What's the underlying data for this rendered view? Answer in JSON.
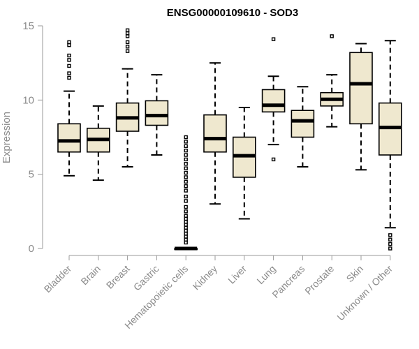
{
  "chart_data": {
    "type": "boxplot",
    "title": "ENSG00000109610 - SOD3",
    "ylabel": "Expression",
    "xlabel": "",
    "ylim": [
      0,
      15
    ],
    "yticks": [
      0,
      5,
      10,
      15
    ],
    "colors": {
      "box_fill": "#efe8cf",
      "box_stroke": "#000000",
      "axis": "#9a9a9a",
      "text": "#8a8a8a"
    },
    "categories": [
      "Bladder",
      "Brain",
      "Breast",
      "Gastric",
      "Hematopoietic cells",
      "Kidney",
      "Liver",
      "Lung",
      "Pancreas",
      "Prostate",
      "Skin",
      "Unknown / Other"
    ],
    "boxes": [
      {
        "category": "Bladder",
        "whisker_low": 4.9,
        "q1": 6.5,
        "median": 7.25,
        "q3": 8.4,
        "whisker_high": 10.6,
        "outliers": [
          11.5,
          11.8,
          12.3,
          12.7,
          13.0,
          13.7,
          13.9
        ]
      },
      {
        "category": "Brain",
        "whisker_low": 4.6,
        "q1": 6.5,
        "median": 7.35,
        "q3": 8.1,
        "whisker_high": 9.6,
        "outliers": []
      },
      {
        "category": "Breast",
        "whisker_low": 5.5,
        "q1": 7.9,
        "median": 8.8,
        "q3": 9.8,
        "whisker_high": 12.1,
        "outliers": [
          13.3,
          13.6,
          13.9,
          14.3,
          14.5,
          14.7
        ]
      },
      {
        "category": "Gastric",
        "whisker_low": 6.3,
        "q1": 8.3,
        "median": 8.95,
        "q3": 9.95,
        "whisker_high": 11.7,
        "outliers": []
      },
      {
        "category": "Hematopoietic cells",
        "whisker_low": 0.0,
        "q1": 0.0,
        "median": 0.0,
        "q3": 0.0,
        "whisker_high": 0.0,
        "outliers": [
          0.4,
          0.6,
          0.8,
          1.0,
          1.2,
          1.4,
          1.6,
          1.8,
          2.0,
          2.2,
          2.5,
          2.8,
          3.2,
          3.5,
          3.9,
          4.2,
          4.5,
          4.8,
          5.1,
          5.4,
          5.7,
          6.0,
          6.3,
          6.6,
          6.9,
          7.2,
          7.5
        ]
      },
      {
        "category": "Kidney",
        "whisker_low": 3.0,
        "q1": 6.5,
        "median": 7.4,
        "q3": 9.0,
        "whisker_high": 12.5,
        "outliers": []
      },
      {
        "category": "Liver",
        "whisker_low": 2.0,
        "q1": 4.8,
        "median": 6.25,
        "q3": 7.5,
        "whisker_high": 9.5,
        "outliers": []
      },
      {
        "category": "Lung",
        "whisker_low": 7.0,
        "q1": 9.2,
        "median": 9.65,
        "q3": 10.7,
        "whisker_high": 11.6,
        "outliers": [
          6.0,
          14.1
        ]
      },
      {
        "category": "Pancreas",
        "whisker_low": 5.5,
        "q1": 7.5,
        "median": 8.6,
        "q3": 9.3,
        "whisker_high": 10.9,
        "outliers": []
      },
      {
        "category": "Prostate",
        "whisker_low": 8.2,
        "q1": 9.6,
        "median": 10.05,
        "q3": 10.5,
        "whisker_high": 11.7,
        "outliers": [
          14.3
        ]
      },
      {
        "category": "Skin",
        "whisker_low": 5.3,
        "q1": 8.4,
        "median": 11.1,
        "q3": 13.2,
        "whisker_high": 13.8,
        "outliers": []
      },
      {
        "category": "Unknown / Other",
        "whisker_low": 1.4,
        "q1": 6.3,
        "median": 8.15,
        "q3": 9.8,
        "whisker_high": 14.0,
        "outliers": [
          0.0,
          0.3,
          0.6,
          0.9
        ]
      }
    ]
  }
}
